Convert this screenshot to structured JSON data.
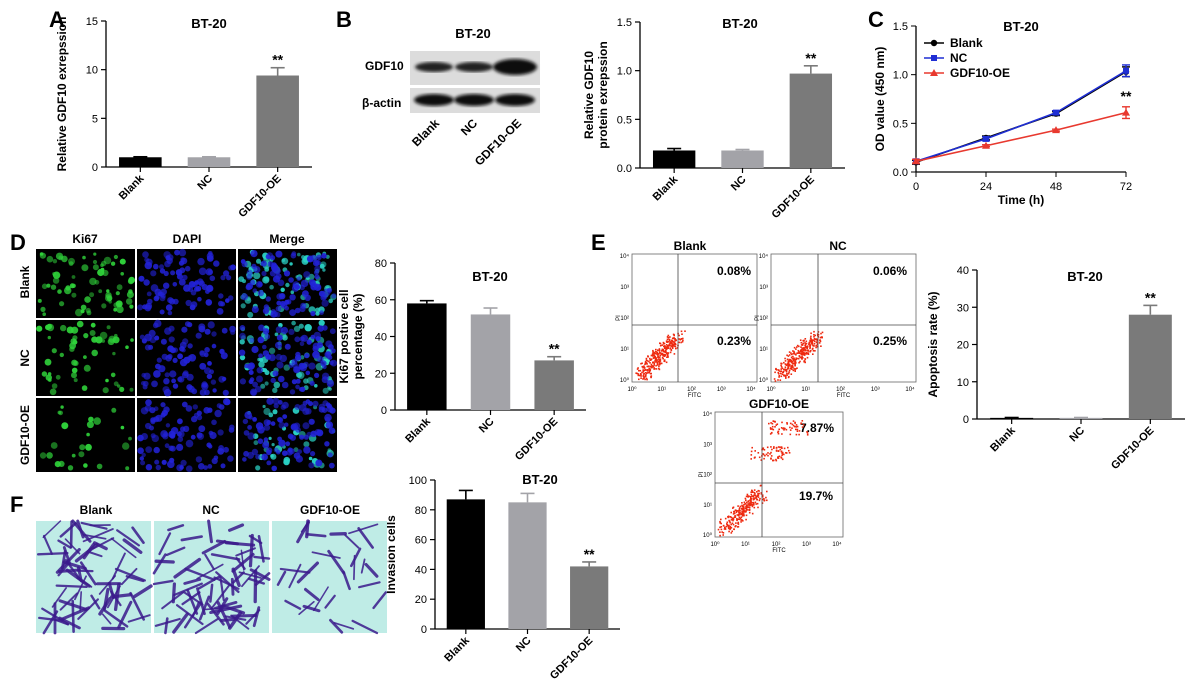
{
  "panel_letters": [
    "A",
    "B",
    "C",
    "D",
    "E",
    "F"
  ],
  "colors": {
    "black_bar": "#000000",
    "lightgray_bar": "#a3a3a8",
    "gray_bar": "#7a7a7a",
    "blank_line": "#000000",
    "nc_line": "#1f2ed4",
    "oe_line": "#e8392f",
    "ki67_green": "#2fd23a",
    "dapi_blue": "#2222d8",
    "transwell_bg": "#bfece6",
    "transwell_cell": "#3b1a8c",
    "flow_dot": "#ee2a10"
  },
  "western": {
    "title": "BT-20",
    "bands": [
      "GDF10",
      "β-actin"
    ],
    "lanes": [
      "Blank",
      "NC",
      "GDF10-OE"
    ]
  },
  "panel_d": {
    "columns": [
      "Ki67",
      "DAPI",
      "Merge"
    ],
    "rows": [
      "Blank",
      "NC",
      "GDF10-OE"
    ]
  },
  "panel_f": {
    "columns": [
      "Blank",
      "NC",
      "GDF10-OE"
    ]
  },
  "flow": {
    "x_axis": "FITC",
    "y_axis": "PI",
    "plots": [
      {
        "title": "Blank",
        "upper_right": "0.08%",
        "lower_right": "0.23%"
      },
      {
        "title": "NC",
        "upper_right": "0.06%",
        "lower_right": "0.25%"
      },
      {
        "title": "GDF10-OE",
        "upper_right": "7.87%",
        "lower_right": "19.7%"
      }
    ],
    "ticks": [
      "10⁰",
      "10¹",
      "10²",
      "10³",
      "10⁴"
    ]
  },
  "chart_data": [
    {
      "id": "A",
      "type": "bar",
      "title": "BT-20",
      "categories": [
        "Blank",
        "NC",
        "GDF10-OE"
      ],
      "values": [
        1.0,
        1.0,
        9.4
      ],
      "errors": [
        0.05,
        0.05,
        0.8
      ],
      "significance": [
        "",
        "",
        "**"
      ],
      "ylabel": "Relative GDF10 exrepssion",
      "ylim": [
        0,
        15
      ],
      "yticks": [
        0,
        5,
        10,
        15
      ]
    },
    {
      "id": "B",
      "type": "bar",
      "title": "BT-20",
      "categories": [
        "Blank",
        "NC",
        "GDF10-OE"
      ],
      "values": [
        0.18,
        0.18,
        0.97
      ],
      "errors": [
        0.02,
        0.01,
        0.08
      ],
      "significance": [
        "",
        "",
        "**"
      ],
      "ylabel": "Relative GDF10 protein exrepssion",
      "ylim": [
        0,
        1.5
      ],
      "yticks": [
        0.0,
        0.5,
        1.0,
        1.5
      ]
    },
    {
      "id": "C",
      "type": "line",
      "title": "BT-20",
      "x": [
        0,
        24,
        48,
        72
      ],
      "series": [
        {
          "name": "Blank",
          "values": [
            0.1,
            0.35,
            0.6,
            1.03
          ],
          "errors": [
            0.02,
            0.02,
            0.02,
            0.05
          ]
        },
        {
          "name": "NC",
          "values": [
            0.11,
            0.34,
            0.61,
            1.04
          ],
          "errors": [
            0.02,
            0.02,
            0.02,
            0.06
          ]
        },
        {
          "name": "GDF10-OE",
          "values": [
            0.11,
            0.27,
            0.43,
            0.61
          ],
          "errors": [
            0.02,
            0.01,
            0.01,
            0.06
          ]
        }
      ],
      "significance_text": "**",
      "xlabel": "Time (h)",
      "ylabel": "OD value (450 nm)",
      "xlim": [
        0,
        72
      ],
      "ylim": [
        0,
        1.5
      ],
      "xticks": [
        0,
        24,
        48,
        72
      ],
      "yticks": [
        0.0,
        0.5,
        1.0,
        1.5
      ],
      "legend": "top-left"
    },
    {
      "id": "D",
      "type": "bar",
      "title": "BT-20",
      "categories": [
        "Blank",
        "NC",
        "GDF10-OE"
      ],
      "values": [
        58,
        52,
        27
      ],
      "errors": [
        1.5,
        3.5,
        2.0
      ],
      "significance": [
        "",
        "",
        "**"
      ],
      "ylabel": "Ki67 postive cell percentage (%)",
      "ylim": [
        0,
        80
      ],
      "yticks": [
        0,
        20,
        40,
        60,
        80
      ]
    },
    {
      "id": "E",
      "type": "bar",
      "title": "BT-20",
      "categories": [
        "Blank",
        "NC",
        "GDF10-OE"
      ],
      "values": [
        0.3,
        0.3,
        28.0
      ],
      "errors": [
        0.1,
        0.1,
        2.5
      ],
      "significance": [
        "",
        "",
        "**"
      ],
      "ylabel": "Apoptosis rate (%)",
      "ylim": [
        0,
        40
      ],
      "yticks": [
        0,
        10,
        20,
        30,
        40
      ]
    },
    {
      "id": "F",
      "type": "bar",
      "title": "BT-20",
      "categories": [
        "Blank",
        "NC",
        "GDF10-OE"
      ],
      "values": [
        87,
        85,
        42
      ],
      "errors": [
        6,
        6,
        3
      ],
      "significance": [
        "",
        "",
        "**"
      ],
      "ylabel": "Invasion cells",
      "ylim": [
        0,
        100
      ],
      "yticks": [
        0,
        20,
        40,
        60,
        80,
        100
      ]
    }
  ]
}
